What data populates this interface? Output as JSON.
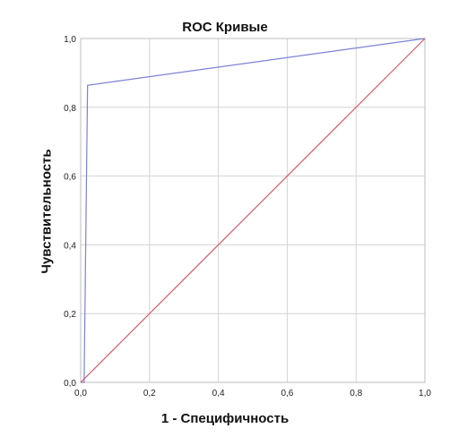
{
  "chart_data": {
    "type": "line",
    "title": "ROC Кривые",
    "xlabel": "1 - Специфичность",
    "ylabel": "Чувствительность",
    "xlim": [
      0,
      1
    ],
    "ylim": [
      0,
      1
    ],
    "grid": true,
    "x_ticks": [
      "0,0",
      "0,2",
      "0,4",
      "0,6",
      "0,8",
      "1,0"
    ],
    "y_ticks": [
      "0,0",
      "0,2",
      "0,4",
      "0,6",
      "0,8",
      "1,0"
    ],
    "series": [
      {
        "color": "#7b82d6",
        "points": [
          [
            0.0,
            0.0
          ],
          [
            0.01,
            0.0
          ],
          [
            0.02,
            0.864
          ],
          [
            1.0,
            1.0
          ]
        ]
      },
      {
        "color": "#d85a6a",
        "points": [
          [
            0.0,
            0.0
          ],
          [
            1.0,
            1.0
          ]
        ]
      }
    ]
  }
}
